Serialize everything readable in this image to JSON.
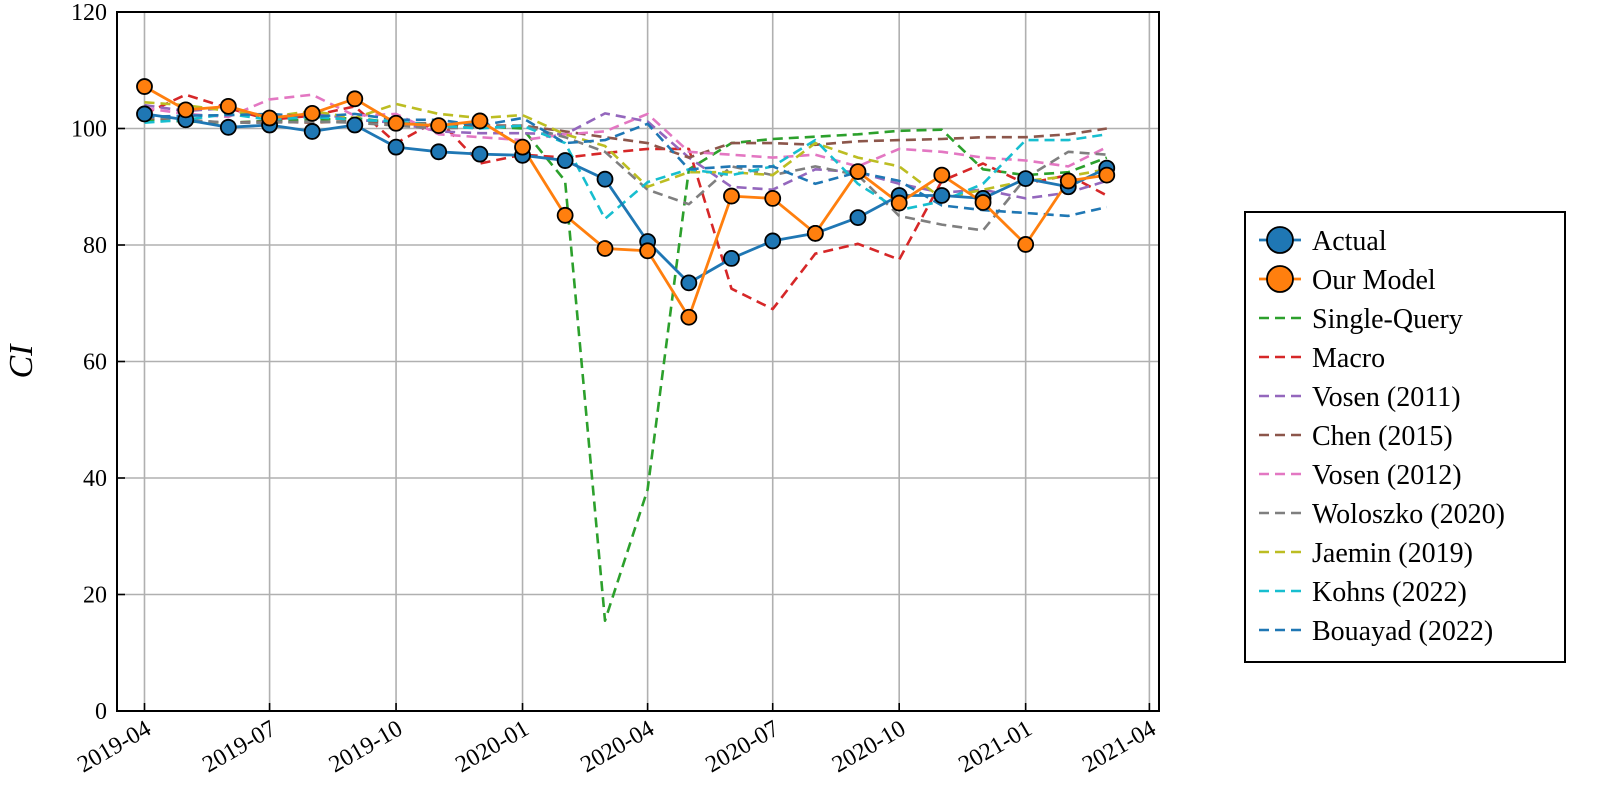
{
  "chart_data": {
    "type": "line",
    "title": "",
    "xlabel": "",
    "ylabel": "CI",
    "ylim": [
      0,
      120
    ],
    "yticks": [
      0,
      20,
      40,
      60,
      80,
      100,
      120
    ],
    "xlim": [
      "2019-03-12",
      "2021-04-08"
    ],
    "xticks": [
      "2019-04",
      "2019-07",
      "2019-10",
      "2020-01",
      "2020-04",
      "2020-07",
      "2020-10",
      "2021-01",
      "2021-04"
    ],
    "grid": true,
    "legend_position": "right",
    "x": [
      "2019-04",
      "2019-05",
      "2019-06",
      "2019-07",
      "2019-08",
      "2019-09",
      "2019-10",
      "2019-11",
      "2019-12",
      "2020-01",
      "2020-02",
      "2020-03",
      "2020-04",
      "2020-05",
      "2020-06",
      "2020-07",
      "2020-08",
      "2020-09",
      "2020-10",
      "2020-11",
      "2020-12",
      "2021-01",
      "2021-02",
      "2021-03"
    ],
    "series": [
      {
        "name": "Actual",
        "style": "solid-marker",
        "color": "#1f77b4",
        "values": [
          102.5,
          101.5,
          100.2,
          100.6,
          99.5,
          100.6,
          96.8,
          96.0,
          95.6,
          95.4,
          94.5,
          91.3,
          80.6,
          73.5,
          77.7,
          80.7,
          82.0,
          84.7,
          88.5,
          88.5,
          88.0,
          91.4,
          90.0,
          93.2
        ]
      },
      {
        "name": "Our Model",
        "style": "solid-marker",
        "color": "#ff7f0e",
        "values": [
          107.2,
          103.2,
          103.8,
          101.8,
          102.6,
          105.1,
          100.9,
          100.5,
          101.3,
          96.8,
          85.1,
          79.4,
          79.0,
          67.6,
          88.4,
          88.0,
          82.0,
          92.6,
          87.2,
          92.0,
          87.3,
          80.1,
          91.0,
          92.0
        ]
      },
      {
        "name": "Single-Query",
        "style": "dashed",
        "color": "#2ca02c",
        "values": [
          101.5,
          101.2,
          101.0,
          101.3,
          101.5,
          101.8,
          101.0,
          100.6,
          100.4,
          100.0,
          91.0,
          15.5,
          38.0,
          93.0,
          97.5,
          98.2,
          98.6,
          99.0,
          99.6,
          99.8,
          93.0,
          92.0,
          92.5,
          95.0
        ]
      },
      {
        "name": "Macro",
        "style": "dashed",
        "color": "#d62728",
        "values": [
          102.5,
          105.8,
          103.5,
          101.5,
          102.2,
          103.8,
          97.5,
          101.5,
          94.0,
          95.5,
          95.0,
          95.8,
          96.5,
          96.5,
          72.5,
          69.0,
          78.5,
          80.2,
          77.5,
          91.0,
          94.0,
          90.5,
          92.0,
          88.5
        ]
      },
      {
        "name": "Vosen (2011)",
        "style": "dashed",
        "color": "#9467bd",
        "values": [
          104.0,
          103.0,
          103.5,
          102.0,
          102.8,
          101.5,
          101.0,
          99.5,
          99.2,
          99.2,
          99.0,
          102.6,
          101.2,
          95.0,
          90.0,
          89.5,
          93.0,
          92.5,
          90.5,
          89.0,
          89.5,
          88.0,
          89.0,
          91.0
        ]
      },
      {
        "name": "Chen (2015)",
        "style": "dashed",
        "color": "#8c564b",
        "values": [
          101.8,
          101.4,
          101.0,
          101.2,
          101.0,
          101.3,
          101.0,
          100.8,
          100.5,
          100.5,
          99.5,
          98.5,
          97.5,
          95.0,
          97.5,
          97.5,
          97.2,
          97.8,
          98.0,
          98.2,
          98.5,
          98.5,
          99.0,
          100.0
        ]
      },
      {
        "name": "Vosen (2012)",
        "style": "dashed",
        "color": "#e377c2",
        "values": [
          103.5,
          102.5,
          102.0,
          105.0,
          105.8,
          102.2,
          102.5,
          99.0,
          98.5,
          98.0,
          99.0,
          99.5,
          102.5,
          96.0,
          95.5,
          95.0,
          95.5,
          93.5,
          96.5,
          96.0,
          95.0,
          94.5,
          93.5,
          96.8
        ]
      },
      {
        "name": "Woloszko (2020)",
        "style": "dashed",
        "color": "#7f7f7f",
        "values": [
          102.0,
          101.5,
          101.0,
          101.0,
          101.2,
          101.0,
          100.5,
          100.0,
          100.2,
          100.5,
          98.5,
          96.0,
          89.5,
          87.0,
          93.5,
          92.0,
          93.5,
          92.0,
          85.0,
          83.5,
          82.5,
          91.5,
          96.0,
          95.5
        ]
      },
      {
        "name": "Jaemin (2019)",
        "style": "dashed",
        "color": "#bcbd22",
        "values": [
          104.5,
          104.0,
          103.0,
          102.0,
          103.0,
          101.8,
          104.2,
          102.5,
          101.8,
          102.3,
          99.0,
          97.0,
          90.0,
          92.5,
          92.5,
          92.0,
          97.5,
          95.0,
          93.5,
          88.0,
          89.5,
          91.0,
          91.8,
          93.0
        ]
      },
      {
        "name": "Kohns (2022)",
        "style": "dashed",
        "color": "#17becf",
        "values": [
          101.0,
          101.5,
          102.5,
          101.5,
          102.0,
          101.5,
          101.2,
          100.5,
          100.0,
          100.5,
          97.5,
          84.5,
          90.8,
          93.0,
          92.0,
          93.5,
          98.0,
          90.5,
          86.0,
          87.5,
          90.5,
          98.0,
          98.0,
          99.0
        ]
      },
      {
        "name": "Bouayad (2022)",
        "style": "dashed",
        "color": "#1f77b4",
        "values": [
          102.0,
          102.2,
          102.3,
          102.5,
          102.0,
          102.5,
          101.5,
          101.5,
          100.5,
          101.8,
          97.5,
          98.0,
          100.8,
          93.0,
          93.5,
          93.5,
          90.5,
          92.5,
          91.0,
          86.8,
          86.0,
          85.5,
          85.0,
          86.5
        ]
      }
    ]
  }
}
